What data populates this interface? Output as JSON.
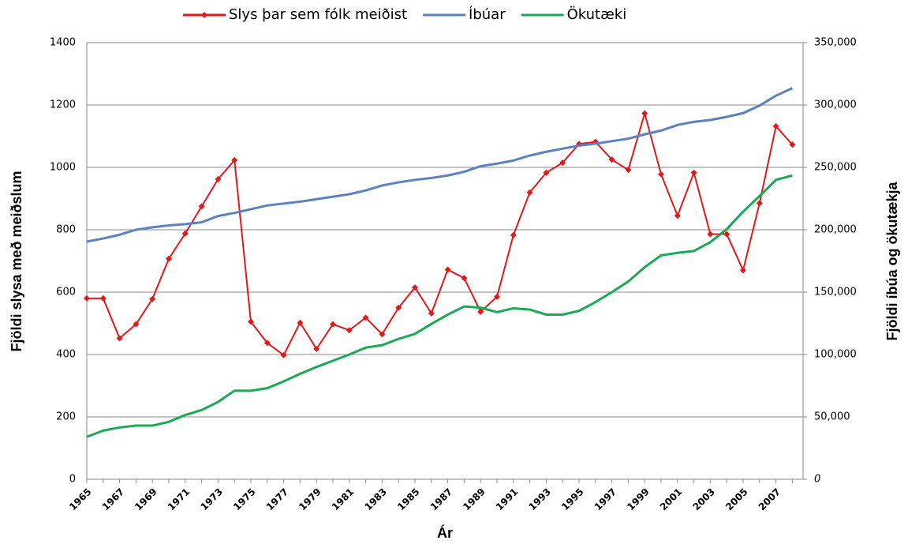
{
  "chart_data": {
    "type": "line",
    "y_label": "Fjöldi slysa með meiðslum",
    "y2_label": "Fjöldi íbúa og ökutækja",
    "x_label": "Ár",
    "categories": [
      "1965",
      null,
      "1967",
      null,
      "1969",
      null,
      "1971",
      null,
      "1973",
      null,
      "1975",
      null,
      "1977",
      null,
      "1979",
      null,
      "1981",
      null,
      "1983",
      null,
      "1985",
      null,
      "1987",
      null,
      "1989",
      null,
      "1991",
      null,
      "1993",
      null,
      "1995",
      null,
      "1997",
      null,
      "1999",
      null,
      "2001",
      null,
      "2003",
      null,
      "2005",
      null,
      "2007",
      null
    ],
    "series": [
      {
        "name": "Slys þar sem fólk meiðist",
        "color": "#e0191c",
        "markers": true,
        "values": [
          580,
          580,
          452,
          497,
          578,
          707,
          788,
          875,
          962,
          1023,
          505,
          437,
          398,
          502,
          418,
          497,
          478,
          518,
          465,
          550,
          615,
          532,
          672,
          645,
          537,
          585,
          783,
          920,
          983,
          1015,
          1075,
          1082,
          1025,
          992,
          1173,
          978,
          845,
          983,
          786,
          786,
          670,
          885,
          1132,
          1073
        ]
      },
      {
        "name": "Íbúar",
        "color": "#5b82c0",
        "axis": "y2",
        "values": [
          190500,
          193000,
          196000,
          200000,
          202000,
          203500,
          204500,
          206000,
          211000,
          213500,
          216500,
          219500,
          221000,
          222500,
          224500,
          226500,
          228500,
          231500,
          235500,
          238000,
          240000,
          241500,
          243500,
          246500,
          251000,
          253000,
          255500,
          259500,
          262500,
          265000,
          267500,
          269000,
          271000,
          273000,
          276500,
          279500,
          284000,
          286500,
          288000,
          290500,
          293500,
          299500,
          307500,
          313500
        ]
      },
      {
        "name": "Ökutæki",
        "color": "#1aaa55",
        "axis": "y2",
        "values": [
          34000,
          39000,
          41500,
          43000,
          43000,
          46000,
          51500,
          55500,
          62000,
          71000,
          71000,
          73000,
          78500,
          84500,
          90000,
          95000,
          100000,
          105500,
          107500,
          112500,
          116500,
          124500,
          132000,
          138500,
          137500,
          134000,
          137000,
          136000,
          132000,
          132000,
          135000,
          142000,
          150000,
          158500,
          170000,
          179500,
          181500,
          183000,
          190000,
          200500,
          214500,
          227000,
          240000,
          243500
        ]
      }
    ],
    "ylim": [
      0,
      1400
    ],
    "yticks": [
      0,
      200,
      400,
      600,
      800,
      1000,
      1200,
      1400
    ],
    "y2lim": [
      0,
      350000
    ],
    "y2ticks": [
      0,
      {
        "value": 50000,
        "label": "50,000"
      },
      {
        "value": 100000,
        "label": "100,000"
      },
      {
        "value": 150000,
        "label": "150,000"
      },
      {
        "value": 200000,
        "label": "200,000"
      },
      {
        "value": 250000,
        "label": "250,000"
      },
      {
        "value": 300000,
        "label": "300,000"
      },
      {
        "value": 350000,
        "label": "350,000"
      }
    ],
    "grid": true,
    "legend": "top"
  }
}
